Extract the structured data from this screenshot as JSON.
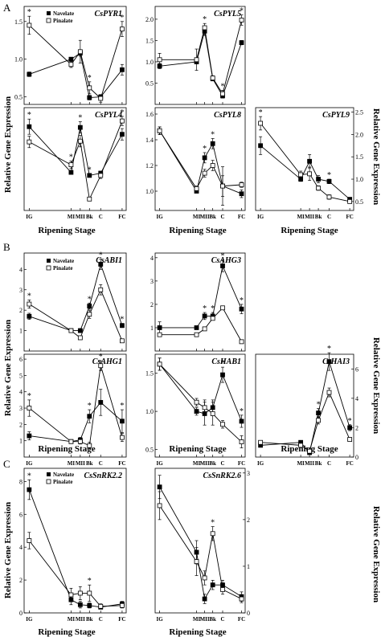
{
  "figure": {
    "panel_labels": [
      "A",
      "B",
      "C"
    ],
    "ylabel_left": "Relative Gene Expression",
    "ylabel_right": "Relative Gene Expression",
    "xlabel": "Ripening Stage",
    "legend": {
      "navelate": "Navelate",
      "pinalate": "Pinalate"
    }
  },
  "chart_data": [
    {
      "type": "line",
      "panel": "A",
      "title": "CsPYR1",
      "ylim": [
        0.4,
        1.7
      ],
      "yticks": [
        0.5,
        1.0,
        1.5
      ],
      "x": [
        "IG",
        "MI",
        "MII",
        "Bk",
        "C",
        "FC"
      ],
      "series": [
        {
          "name": "Navelate",
          "values": [
            0.8,
            1.0,
            1.08,
            0.49,
            0.5,
            0.86
          ],
          "err": [
            0.03,
            0.02,
            0.04,
            0.03,
            0.03,
            0.07
          ]
        },
        {
          "name": "Pinalate",
          "values": [
            1.45,
            0.93,
            1.1,
            0.62,
            0.48,
            1.4
          ],
          "err": [
            0.12,
            0.04,
            0.15,
            0.08,
            0.05,
            0.1
          ]
        }
      ],
      "sig": [
        0,
        3,
        5
      ]
    },
    {
      "type": "line",
      "panel": "A",
      "title": "CsPYL5",
      "ylim": [
        0,
        2.3
      ],
      "yticks": [
        0.5,
        1.0,
        1.5,
        2.0
      ],
      "x": [
        "IG",
        "MI",
        "MII",
        "Bk",
        "C",
        "FC"
      ],
      "series": [
        {
          "name": "Navelate",
          "values": [
            0.9,
            1.0,
            1.72,
            0.6,
            0.2,
            1.45
          ],
          "err": [
            0.06,
            0.05,
            0.1,
            0.04,
            0.05,
            0.05
          ]
        },
        {
          "name": "Pinalate",
          "values": [
            1.05,
            1.05,
            1.8,
            0.62,
            0.25,
            1.98
          ],
          "err": [
            0.15,
            0.25,
            0.1,
            0.05,
            0.08,
            0.12
          ]
        }
      ],
      "sig": [
        2,
        4,
        5
      ]
    },
    {
      "type": "line",
      "panel": "A",
      "title": "CsPYL4",
      "ylim": [
        0,
        2.7
      ],
      "yticks": [],
      "x": [
        "IG",
        "MI",
        "MII",
        "Bk",
        "C",
        "FC"
      ],
      "series": [
        {
          "name": "Navelate",
          "values": [
            2.2,
            1.0,
            2.18,
            0.92,
            0.98,
            2.0
          ],
          "err": [
            0.2,
            0.05,
            0.15,
            0.04,
            0.05,
            0.15
          ]
        },
        {
          "name": "Pinalate",
          "values": [
            1.8,
            1.2,
            1.82,
            0.3,
            0.92,
            2.35
          ],
          "err": [
            0.15,
            0.1,
            0.15,
            0.04,
            0.08,
            0.12
          ]
        }
      ],
      "sig": [
        0,
        1,
        2,
        3,
        5
      ]
    },
    {
      "type": "line",
      "panel": "A",
      "title": "CsPYL8",
      "ylim": [
        0.85,
        1.65
      ],
      "yticks": [
        1.0,
        1.2,
        1.4,
        1.6
      ],
      "x": [
        "IG",
        "MI",
        "MII",
        "Bk",
        "C",
        "FC"
      ],
      "series": [
        {
          "name": "Navelate",
          "values": [
            1.47,
            1.0,
            1.26,
            1.37,
            1.04,
            0.98
          ],
          "err": [
            0.03,
            0.01,
            0.04,
            0.04,
            0.15,
            0.03
          ]
        },
        {
          "name": "Pinalate",
          "values": [
            1.47,
            1.02,
            1.14,
            1.2,
            1.04,
            1.05
          ],
          "err": [
            0.03,
            0.02,
            0.03,
            0.04,
            0.08,
            0.02
          ]
        }
      ],
      "sig": [
        2,
        3
      ]
    },
    {
      "type": "line",
      "panel": "A",
      "title": "CsPYL9",
      "ylim": [
        0.3,
        2.6
      ],
      "yticks": [
        0.5,
        1.0,
        1.5,
        2.0,
        2.5
      ],
      "x": [
        "IG",
        "MI",
        "MII",
        "Bk",
        "C",
        "FC"
      ],
      "series": [
        {
          "name": "Navelate",
          "values": [
            1.75,
            1.0,
            1.4,
            1.0,
            0.95,
            0.55
          ],
          "err": [
            0.2,
            0.05,
            0.15,
            0.08,
            0.05,
            0.04
          ]
        },
        {
          "name": "Pinalate",
          "values": [
            2.25,
            1.1,
            1.12,
            0.8,
            0.6,
            0.5
          ],
          "err": [
            0.15,
            0.08,
            0.15,
            0.05,
            0.05,
            0.04
          ]
        }
      ],
      "sig": [
        0,
        4
      ]
    },
    {
      "type": "line",
      "panel": "B",
      "title": "CsABI1",
      "ylim": [
        0,
        4.8
      ],
      "yticks": [
        1,
        2,
        3,
        4
      ],
      "x": [
        "IG",
        "MI",
        "MII",
        "Bk",
        "C",
        "FC"
      ],
      "series": [
        {
          "name": "Navelate",
          "values": [
            1.7,
            1.0,
            1.0,
            2.2,
            4.25,
            1.25
          ],
          "err": [
            0.15,
            0.05,
            0.1,
            0.15,
            0.25,
            0.1
          ]
        },
        {
          "name": "Pinalate",
          "values": [
            2.3,
            1.0,
            0.65,
            1.8,
            3.0,
            0.5
          ],
          "err": [
            0.2,
            0.05,
            0.08,
            0.2,
            0.25,
            0.05
          ]
        }
      ],
      "sig": [
        0,
        3,
        4,
        5
      ]
    },
    {
      "type": "line",
      "panel": "B",
      "title": "CsAHG3",
      "ylim": [
        0,
        4.2
      ],
      "yticks": [
        1,
        2,
        3,
        4
      ],
      "x": [
        "IG",
        "MI",
        "MII",
        "Bk",
        "C",
        "FC"
      ],
      "series": [
        {
          "name": "Navelate",
          "values": [
            1.0,
            1.0,
            1.5,
            1.5,
            3.65,
            1.8
          ],
          "err": [
            0.25,
            0.05,
            0.15,
            0.15,
            0.25,
            0.2
          ]
        },
        {
          "name": "Pinalate",
          "values": [
            0.7,
            0.7,
            0.95,
            1.4,
            1.85,
            0.4
          ]
        }
      ],
      "sig": [
        2,
        3,
        4,
        5
      ]
    },
    {
      "type": "line",
      "panel": "B",
      "title": "CsAHG1",
      "ylim": [
        0,
        6.3
      ],
      "yticks": [
        1,
        2,
        3,
        4,
        5,
        6
      ],
      "x": [
        "IG",
        "MI",
        "MII",
        "Bk",
        "C",
        "FC"
      ],
      "series": [
        {
          "name": "Navelate",
          "values": [
            1.3,
            0.95,
            1.05,
            2.5,
            3.35,
            2.2
          ],
          "err": [
            0.25,
            0.1,
            0.15,
            0.4,
            0.8,
            0.7
          ]
        },
        {
          "name": "Pinalate",
          "values": [
            3.0,
            0.95,
            0.95,
            0.7,
            5.6,
            1.2
          ],
          "err": [
            0.5,
            0.1,
            0.15,
            0.2,
            0.3,
            0.25
          ]
        }
      ],
      "sig": [
        0,
        3,
        4,
        5
      ]
    },
    {
      "type": "line",
      "panel": "B",
      "title": "CsHAB1",
      "ylim": [
        0.4,
        1.75
      ],
      "yticks": [
        0.5,
        1.0,
        1.5
      ],
      "x": [
        "IG",
        "MI",
        "MII",
        "Bk",
        "C",
        "FC"
      ],
      "series": [
        {
          "name": "Navelate",
          "values": [
            1.62,
            1.0,
            0.97,
            1.05,
            1.48,
            0.87
          ],
          "err": [
            0.08,
            0.05,
            0.15,
            0.1,
            0.1,
            0.08
          ]
        },
        {
          "name": "Pinalate",
          "values": [
            1.62,
            1.12,
            1.05,
            0.97,
            0.83,
            0.6
          ],
          "err": [
            0.08,
            0.05,
            0.1,
            0.15,
            0.05,
            0.08
          ]
        }
      ],
      "sig": [
        4,
        5
      ]
    },
    {
      "type": "line",
      "panel": "B",
      "title": "CsHAI3",
      "ylim": [
        0,
        7
      ],
      "yticks": [
        0,
        2,
        4,
        6
      ],
      "x": [
        "IG",
        "MI",
        "MII",
        "Bk",
        "C",
        "FC"
      ],
      "series": [
        {
          "name": "Navelate",
          "values": [
            0.8,
            1.0,
            0.3,
            3.0,
            6.5,
            2.0
          ],
          "err": [
            0.1,
            0.05,
            0.05,
            0.3,
            0.6,
            0.2
          ]
        },
        {
          "name": "Pinalate",
          "values": [
            1.0,
            0.8,
            0.4,
            2.5,
            4.4,
            1.2
          ],
          "err": [
            0.1,
            0.05,
            0.05,
            0.25,
            0.3,
            0.1
          ]
        }
      ],
      "sig": [
        3,
        4,
        5
      ]
    },
    {
      "type": "line",
      "panel": "C",
      "title": "CsSnRK2.2",
      "ylim": [
        0,
        8.8
      ],
      "yticks": [
        0,
        2,
        4,
        6,
        8
      ],
      "x": [
        "IG",
        "MI",
        "MII",
        "Bk",
        "C",
        "FC"
      ],
      "series": [
        {
          "name": "Navelate",
          "values": [
            7.5,
            0.8,
            0.5,
            0.45,
            0.35,
            0.55
          ],
          "err": [
            0.6,
            0.3,
            0.2,
            0.15,
            0.1,
            0.15
          ]
        },
        {
          "name": "Pinalate",
          "values": [
            4.4,
            1.1,
            1.2,
            1.2,
            0.4,
            0.45
          ],
          "err": [
            0.5,
            0.4,
            0.4,
            0.5,
            0.15,
            0.15
          ]
        }
      ],
      "sig": [
        0,
        3
      ]
    },
    {
      "type": "line",
      "panel": "C",
      "title": "CsSnRK2.6",
      "ylim": [
        0,
        3.1
      ],
      "yticks": [
        0,
        1,
        2,
        3
      ],
      "x": [
        "IG",
        "MI",
        "MII",
        "Bk",
        "C",
        "FC"
      ],
      "series": [
        {
          "name": "Navelate",
          "values": [
            2.7,
            1.3,
            0.3,
            0.6,
            0.6,
            0.35
          ],
          "err": [
            0.25,
            0.25,
            0.1,
            0.1,
            0.1,
            0.1
          ]
        },
        {
          "name": "Pinalate",
          "values": [
            2.3,
            1.1,
            0.75,
            1.7,
            0.5,
            0.3
          ],
          "err": [
            0.3,
            0.3,
            0.15,
            0.15,
            0.1,
            0.08
          ]
        }
      ],
      "sig": [
        3
      ]
    }
  ]
}
